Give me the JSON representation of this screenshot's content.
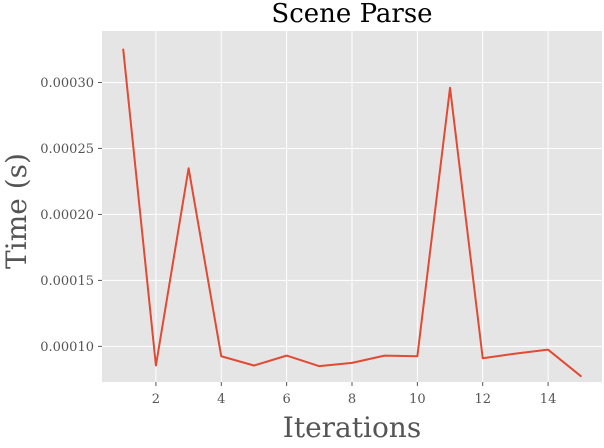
{
  "chart_data": {
    "type": "line",
    "title": "Scene Parse",
    "xlabel": "Iterations",
    "ylabel": "Time (s)",
    "xlim": [
      0.35,
      15.65
    ],
    "ylim": [
      7.3e-05,
      0.000339
    ],
    "xticks": [
      2,
      4,
      6,
      8,
      10,
      12,
      14
    ],
    "xtick_labels": [
      "2",
      "4",
      "6",
      "8",
      "10",
      "12",
      "14"
    ],
    "yticks": [
      0.0001,
      0.00015,
      0.0002,
      0.00025,
      0.0003
    ],
    "ytick_labels": [
      "0.00010",
      "0.00015",
      "0.00020",
      "0.00025",
      "0.00030"
    ],
    "grid": true,
    "background_color": "#e5e5e5",
    "grid_color": "#ffffff",
    "series": [
      {
        "color": "#e24a33",
        "x": [
          1,
          2,
          3,
          4,
          5,
          6,
          7,
          8,
          9,
          10,
          11,
          12,
          13,
          14,
          15
        ],
        "y": [
          0.000325,
          8.55e-05,
          0.000235,
          9.25e-05,
          8.55e-05,
          9.3e-05,
          8.5e-05,
          8.75e-05,
          9.3e-05,
          9.25e-05,
          0.000296,
          9.1e-05,
          9.45e-05,
          9.75e-05,
          7.75e-05
        ]
      }
    ]
  }
}
